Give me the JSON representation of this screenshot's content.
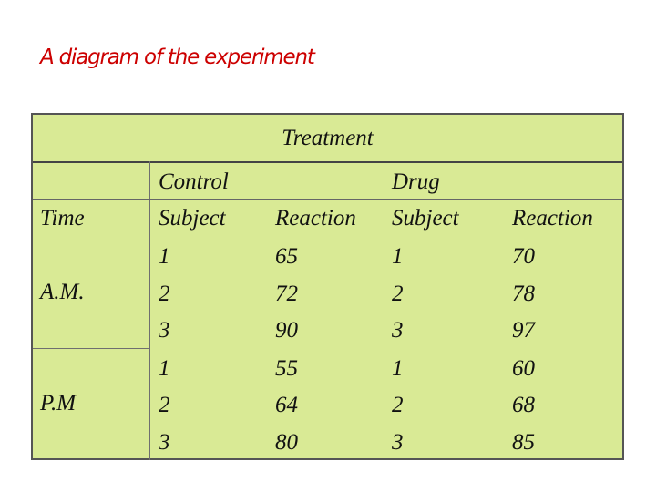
{
  "title": "A diagram of the experiment",
  "table": {
    "header": "Treatment",
    "groups": {
      "control_top": "Control",
      "drug_top": "Drug"
    },
    "columns": {
      "time": "Time",
      "control_subject": "Subject",
      "control_reaction": "Reaction",
      "drug_subject": "Subject",
      "drug_reaction": "Reaction"
    },
    "time_blocks": [
      {
        "label": "A.M."
      },
      {
        "label": "P.M"
      }
    ],
    "rows": [
      {
        "control_subject": "1",
        "control_reaction": "65",
        "drug_subject": "1",
        "drug_reaction": "70"
      },
      {
        "control_subject": "2",
        "control_reaction": "72",
        "drug_subject": "2",
        "drug_reaction": "78"
      },
      {
        "control_subject": "3",
        "control_reaction": "90",
        "drug_subject": "3",
        "drug_reaction": "97"
      },
      {
        "control_subject": "1",
        "control_reaction": "55",
        "drug_subject": "1",
        "drug_reaction": "60"
      },
      {
        "control_subject": "2",
        "control_reaction": "64",
        "drug_subject": "2",
        "drug_reaction": "68"
      },
      {
        "control_subject": "3",
        "control_reaction": "80",
        "drug_subject": "3",
        "drug_reaction": "85"
      }
    ]
  }
}
